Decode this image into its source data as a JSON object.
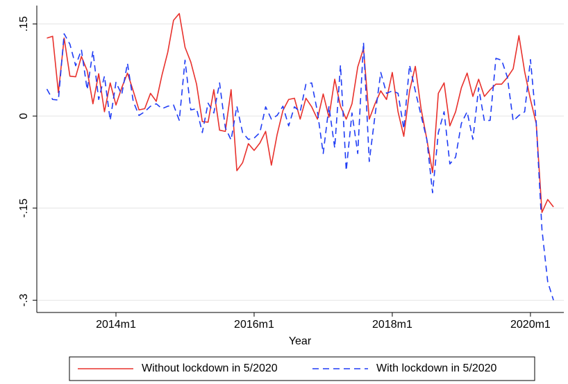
{
  "chart_data": {
    "type": "line",
    "x_label": "Year",
    "x": [
      636,
      637,
      638,
      639,
      640,
      641,
      642,
      643,
      644,
      645,
      646,
      647,
      648,
      649,
      650,
      651,
      652,
      653,
      654,
      655,
      656,
      657,
      658,
      659,
      660,
      661,
      662,
      663,
      664,
      665,
      666,
      667,
      668,
      669,
      670,
      671,
      672,
      673,
      674,
      675,
      676,
      677,
      678,
      679,
      680,
      681,
      682,
      683,
      684,
      685,
      686,
      687,
      688,
      689,
      690,
      691,
      692,
      693,
      694,
      695,
      696,
      697,
      698,
      699,
      700,
      701,
      702,
      703,
      704,
      705,
      706,
      707,
      708,
      709,
      710,
      711,
      712,
      713,
      714,
      715,
      716,
      717,
      718,
      719,
      720,
      721,
      722,
      723,
      724
    ],
    "series": [
      {
        "name": "Without lockdown in 5/2020",
        "color": "#e8312c",
        "dash": "solid",
        "values": [
          0.127,
          0.13,
          0.038,
          0.127,
          0.065,
          0.064,
          0.097,
          0.074,
          0.02,
          0.069,
          0.007,
          0.054,
          0.018,
          0.046,
          0.07,
          0.041,
          0.01,
          0.012,
          0.037,
          0.024,
          0.067,
          0.104,
          0.156,
          0.167,
          0.112,
          0.088,
          0.052,
          -0.009,
          -0.01,
          0.043,
          -0.023,
          -0.025,
          0.043,
          -0.089,
          -0.076,
          -0.045,
          -0.056,
          -0.044,
          -0.025,
          -0.08,
          -0.03,
          0.009,
          0.027,
          0.029,
          -0.005,
          0.029,
          0.015,
          -0.005,
          0.036,
          -0.002,
          0.06,
          0.016,
          -0.005,
          0.02,
          0.08,
          0.11,
          -0.005,
          0.02,
          0.041,
          0.027,
          0.071,
          0.007,
          -0.033,
          0.041,
          0.081,
          0.012,
          -0.038,
          -0.092,
          0.037,
          0.054,
          -0.016,
          0.007,
          0.046,
          0.07,
          0.032,
          0.06,
          0.032,
          0.043,
          0.052,
          0.052,
          0.063,
          0.077,
          0.131,
          0.072,
          0.027,
          -0.012,
          -0.157,
          -0.136,
          -0.148
        ]
      },
      {
        "name": "With lockdown in 5/2020",
        "color": "#1f3cf5",
        "dash": "dashed",
        "values": [
          0.044,
          0.027,
          0.026,
          0.134,
          0.117,
          0.082,
          0.108,
          0.043,
          0.106,
          0.027,
          0.065,
          -0.007,
          0.055,
          0.035,
          0.086,
          0.024,
          0.001,
          0.007,
          0.016,
          0.02,
          0.012,
          0.016,
          0.018,
          -0.007,
          0.091,
          0.01,
          0.012,
          -0.027,
          0.021,
          0.005,
          0.054,
          -0.019,
          -0.039,
          0.016,
          -0.027,
          -0.038,
          -0.036,
          -0.027,
          0.015,
          -0.005,
          0.001,
          0.016,
          -0.016,
          0.015,
          0.007,
          0.052,
          0.054,
          0.007,
          -0.061,
          0.016,
          -0.052,
          0.083,
          -0.089,
          0.005,
          -0.061,
          0.12,
          -0.074,
          0.001,
          0.071,
          0.037,
          0.041,
          0.037,
          -0.021,
          0.083,
          0.041,
          0.001,
          -0.038,
          -0.125,
          -0.027,
          0.007,
          -0.078,
          -0.067,
          -0.012,
          0.007,
          -0.038,
          0.046,
          -0.008,
          -0.007,
          0.094,
          0.091,
          0.063,
          -0.008,
          0.001,
          0.007,
          0.092,
          -0.01,
          -0.185,
          -0.27,
          -0.3
        ]
      }
    ],
    "xlim": [
      634.25,
      725.8
    ],
    "ylim": [
      -0.32,
      0.18
    ],
    "xticks": [
      {
        "value": 648,
        "label": "2014m1"
      },
      {
        "value": 672,
        "label": "2016m1"
      },
      {
        "value": 696,
        "label": "2018m1"
      },
      {
        "value": 720,
        "label": "2020m1"
      }
    ],
    "yticks": [
      {
        "value": -0.3,
        "label": "-.3"
      },
      {
        "value": -0.15,
        "label": "-.15"
      },
      {
        "value": 0,
        "label": "0"
      },
      {
        "value": 0.15,
        "label": ".15"
      }
    ],
    "grid": true,
    "legend": "bottom"
  }
}
